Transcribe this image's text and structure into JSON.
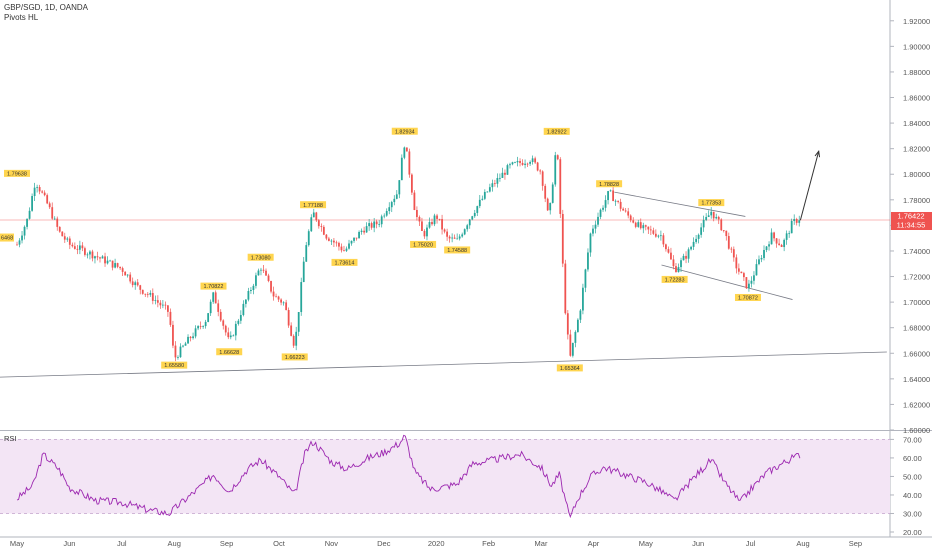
{
  "header": {
    "symbol": "GBP/SGD, 1D, OANDA",
    "indicator": "Pivots HL"
  },
  "rsi_panel": {
    "label": "RSI"
  },
  "price_badges": {
    "last": "1.76422",
    "countdown": "11:34:55",
    "left_cut": "6468"
  },
  "colors": {
    "up": "#26a69a",
    "down": "#ef5350",
    "price_line": "#ef5350",
    "rsi_line": "#9c27b0",
    "rsi_band": "#f3e5f5",
    "label_bg": "#ffd54f",
    "trendline": "#787b86"
  },
  "chart_data": [
    {
      "type": "candlestick",
      "ylim": [
        1.6,
        1.93
      ],
      "y_ticks": [
        "1.92000",
        "1.90000",
        "1.88000",
        "1.86000",
        "1.84000",
        "1.82000",
        "1.80000",
        "1.78000",
        "1.76000",
        "1.74000",
        "1.72000",
        "1.70000",
        "1.68000",
        "1.66000",
        "1.64000",
        "1.62000",
        "1.60000"
      ],
      "x_ticks": [
        "May",
        "Jun",
        "Jul",
        "Aug",
        "Sep",
        "Oct",
        "Nov",
        "Dec",
        "2020",
        "Feb",
        "Mar",
        "Apr",
        "May",
        "Jun",
        "Jul",
        "Aug",
        "Sep"
      ],
      "last_price": 1.76422,
      "pivot_labels": [
        {
          "text": "1.79638",
          "price": 1.79638,
          "pos": "above",
          "month": 0.0
        },
        {
          "text": "1.65580",
          "price": 1.6558,
          "pos": "below",
          "month": 3.0
        },
        {
          "text": "1.70822",
          "price": 1.70822,
          "pos": "above",
          "month": 3.75
        },
        {
          "text": "1.66628",
          "price": 1.66628,
          "pos": "below",
          "month": 4.05
        },
        {
          "text": "1.73080",
          "price": 1.7308,
          "pos": "above",
          "month": 4.65
        },
        {
          "text": "1.66223",
          "price": 1.66223,
          "pos": "below",
          "month": 5.3
        },
        {
          "text": "1.77188",
          "price": 1.77188,
          "pos": "above",
          "month": 5.65
        },
        {
          "text": "1.73614",
          "price": 1.73614,
          "pos": "below",
          "month": 6.25
        },
        {
          "text": "1.82934",
          "price": 1.82934,
          "pos": "above",
          "month": 7.4
        },
        {
          "text": "1.75020",
          "price": 1.7502,
          "pos": "below",
          "month": 7.75
        },
        {
          "text": "1.74588",
          "price": 1.74588,
          "pos": "below",
          "month": 8.4
        },
        {
          "text": "1.82922",
          "price": 1.82922,
          "pos": "above",
          "month": 10.3
        },
        {
          "text": "1.65364",
          "price": 1.65364,
          "pos": "below",
          "month": 10.55
        },
        {
          "text": "1.78828",
          "price": 1.78828,
          "pos": "above",
          "month": 11.3
        },
        {
          "text": "1.72283",
          "price": 1.72283,
          "pos": "below",
          "month": 12.55
        },
        {
          "text": "1.77353",
          "price": 1.77353,
          "pos": "above",
          "month": 13.25
        },
        {
          "text": "1.70872",
          "price": 1.70872,
          "pos": "below",
          "month": 13.95
        }
      ],
      "path_points": [
        [
          0,
          1.745
        ],
        [
          0.2,
          1.765
        ],
        [
          0.35,
          1.795
        ],
        [
          0.6,
          1.775
        ],
        [
          0.8,
          1.755
        ],
        [
          1.0,
          1.745
        ],
        [
          1.4,
          1.738
        ],
        [
          1.7,
          1.732
        ],
        [
          2.0,
          1.726
        ],
        [
          2.3,
          1.712
        ],
        [
          2.6,
          1.703
        ],
        [
          2.9,
          1.692
        ],
        [
          3.0,
          1.6558
        ],
        [
          3.3,
          1.672
        ],
        [
          3.6,
          1.686
        ],
        [
          3.75,
          1.706
        ],
        [
          4.05,
          1.668
        ],
        [
          4.3,
          1.695
        ],
        [
          4.65,
          1.728
        ],
        [
          4.9,
          1.705
        ],
        [
          5.1,
          1.699
        ],
        [
          5.3,
          1.665
        ],
        [
          5.5,
          1.742
        ],
        [
          5.65,
          1.77
        ],
        [
          5.9,
          1.752
        ],
        [
          6.25,
          1.74
        ],
        [
          6.6,
          1.757
        ],
        [
          6.9,
          1.762
        ],
        [
          7.1,
          1.777
        ],
        [
          7.25,
          1.785
        ],
        [
          7.4,
          1.826
        ],
        [
          7.6,
          1.77
        ],
        [
          7.75,
          1.752
        ],
        [
          8.0,
          1.768
        ],
        [
          8.2,
          1.75
        ],
        [
          8.4,
          1.748
        ],
        [
          8.7,
          1.77
        ],
        [
          9.0,
          1.788
        ],
        [
          9.4,
          1.806
        ],
        [
          9.8,
          1.812
        ],
        [
          10.0,
          1.802
        ],
        [
          10.15,
          1.764
        ],
        [
          10.3,
          1.826
        ],
        [
          10.45,
          1.7
        ],
        [
          10.55,
          1.655
        ],
        [
          10.75,
          1.695
        ],
        [
          10.95,
          1.755
        ],
        [
          11.3,
          1.786
        ],
        [
          11.6,
          1.77
        ],
        [
          11.9,
          1.758
        ],
        [
          12.3,
          1.752
        ],
        [
          12.55,
          1.725
        ],
        [
          12.8,
          1.738
        ],
        [
          13.0,
          1.755
        ],
        [
          13.25,
          1.771
        ],
        [
          13.5,
          1.755
        ],
        [
          13.7,
          1.73
        ],
        [
          13.95,
          1.711
        ],
        [
          14.2,
          1.736
        ],
        [
          14.4,
          1.752
        ],
        [
          14.6,
          1.744
        ],
        [
          14.8,
          1.762
        ],
        [
          14.95,
          1.766
        ]
      ],
      "trendlines": [
        {
          "from": [
            -0.6,
            1.641
          ],
          "to": [
            16.6,
            1.661
          ]
        },
        {
          "from": [
            11.4,
            1.786
          ],
          "to": [
            13.9,
            1.767
          ]
        },
        {
          "from": [
            12.3,
            1.729
          ],
          "to": [
            14.8,
            1.702
          ]
        }
      ],
      "projection_arrow": {
        "from": [
          14.95,
          1.764
        ],
        "to": [
          15.3,
          1.818
        ]
      }
    },
    {
      "type": "line",
      "name": "RSI",
      "ylim": [
        20,
        74
      ],
      "y_ticks": [
        "70.00",
        "60.00",
        "50.00",
        "40.00",
        "30.00",
        "20.00"
      ],
      "band": [
        30,
        70
      ],
      "path_points": [
        [
          0,
          38
        ],
        [
          0.3,
          45
        ],
        [
          0.5,
          62
        ],
        [
          0.8,
          54
        ],
        [
          1.0,
          44
        ],
        [
          1.5,
          37
        ],
        [
          2.0,
          36
        ],
        [
          2.5,
          32
        ],
        [
          2.9,
          30
        ],
        [
          3.1,
          35
        ],
        [
          3.4,
          42
        ],
        [
          3.75,
          51
        ],
        [
          4.05,
          42
        ],
        [
          4.4,
          54
        ],
        [
          4.65,
          59
        ],
        [
          5.0,
          50
        ],
        [
          5.3,
          40
        ],
        [
          5.5,
          63
        ],
        [
          5.65,
          69
        ],
        [
          6.0,
          58
        ],
        [
          6.3,
          54
        ],
        [
          6.7,
          60
        ],
        [
          7.0,
          63
        ],
        [
          7.3,
          68
        ],
        [
          7.4,
          72
        ],
        [
          7.6,
          52
        ],
        [
          7.9,
          43
        ],
        [
          8.4,
          46
        ],
        [
          8.7,
          57
        ],
        [
          9.1,
          59
        ],
        [
          9.6,
          62
        ],
        [
          10.0,
          55
        ],
        [
          10.2,
          45
        ],
        [
          10.35,
          51
        ],
        [
          10.55,
          27
        ],
        [
          10.7,
          38
        ],
        [
          10.95,
          50
        ],
        [
          11.2,
          55
        ],
        [
          11.6,
          51
        ],
        [
          12.0,
          47
        ],
        [
          12.3,
          42
        ],
        [
          12.55,
          37
        ],
        [
          12.9,
          49
        ],
        [
          13.25,
          59
        ],
        [
          13.5,
          47
        ],
        [
          13.8,
          36
        ],
        [
          14.0,
          43
        ],
        [
          14.3,
          52
        ],
        [
          14.6,
          57
        ],
        [
          14.8,
          60
        ],
        [
          14.95,
          62
        ]
      ]
    }
  ]
}
